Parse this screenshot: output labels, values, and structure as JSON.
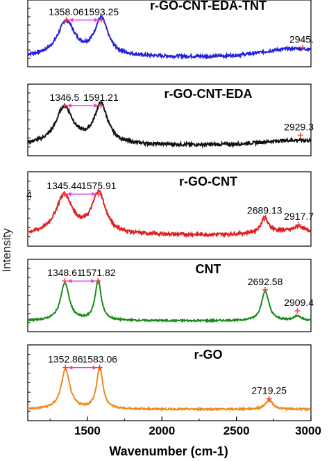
{
  "chart_data": {
    "type": "line",
    "ylabel": "Intensity",
    "xlabel": "Wavenumber (cm-1)",
    "xlim": [
      1100,
      3000
    ],
    "xticks": [
      "1500",
      "2000",
      "2500",
      "3000"
    ],
    "peak_marker_color": "#ff3b3b",
    "arrow_color": "#e040e0",
    "panels": [
      {
        "title": "r-GO-CNT-EDA-TNT",
        "color": "#2222dd",
        "peaks": [
          {
            "x": 1358,
            "label": "1358.06"
          },
          {
            "x": 1593,
            "label": "1593.25"
          },
          {
            "x": 2945,
            "label": "2945."
          }
        ],
        "profile": {
          "d": [
            1358,
            1593,
            2700,
            2945
          ],
          "g": [
            1593
          ],
          "g2": [],
          "baseline": 0.0,
          "broad": 0.22
        }
      },
      {
        "title": "r-GO-CNT-EDA",
        "color": "#111111",
        "peaks": [
          {
            "x": 1346,
            "label": "1346.5"
          },
          {
            "x": 1591,
            "label": "1591.21"
          },
          {
            "x": 2929,
            "label": "2929.3"
          }
        ],
        "profile": {
          "d": [
            1346,
            1591,
            2929
          ],
          "g": [
            1591
          ],
          "g2": [],
          "baseline": 0.0,
          "broad": 0.12
        }
      },
      {
        "title": "r-GO-CNT",
        "color": "#dd2222",
        "peaks": [
          {
            "x": 1345,
            "label": "1345.44"
          },
          {
            "x": 1576,
            "label": "1575.91"
          },
          {
            "x": 2689,
            "label": "2689.13"
          },
          {
            "x": 2918,
            "label": "2917.7"
          }
        ],
        "extra_label": "4",
        "profile": {
          "d": [
            1345,
            1576
          ],
          "g": [
            1576
          ],
          "g2": [
            2689,
            2918
          ],
          "baseline": 0.0,
          "broad": 0.1
        }
      },
      {
        "title": "CNT",
        "color": "#1a8a1a",
        "peaks": [
          {
            "x": 1349,
            "label": "1348.61"
          },
          {
            "x": 1572,
            "label": "1571.82"
          },
          {
            "x": 2693,
            "label": "2692.58"
          },
          {
            "x": 2909,
            "label": "2909.4"
          }
        ],
        "profile": {
          "d": [
            1349,
            1572
          ],
          "g": [
            1572
          ],
          "g2": [
            2693,
            2909
          ],
          "baseline": 0.0,
          "broad": 0.0
        }
      },
      {
        "title": "r-GO",
        "color": "#f08a1c",
        "peaks": [
          {
            "x": 1353,
            "label": "1352.86"
          },
          {
            "x": 1583,
            "label": "1583.06"
          },
          {
            "x": 2719,
            "label": "2719.25"
          }
        ],
        "profile": {
          "d": [
            1353,
            1583
          ],
          "g": [
            1583
          ],
          "g2": [
            2719
          ],
          "baseline": 0.0,
          "broad": 0.0
        }
      }
    ]
  }
}
